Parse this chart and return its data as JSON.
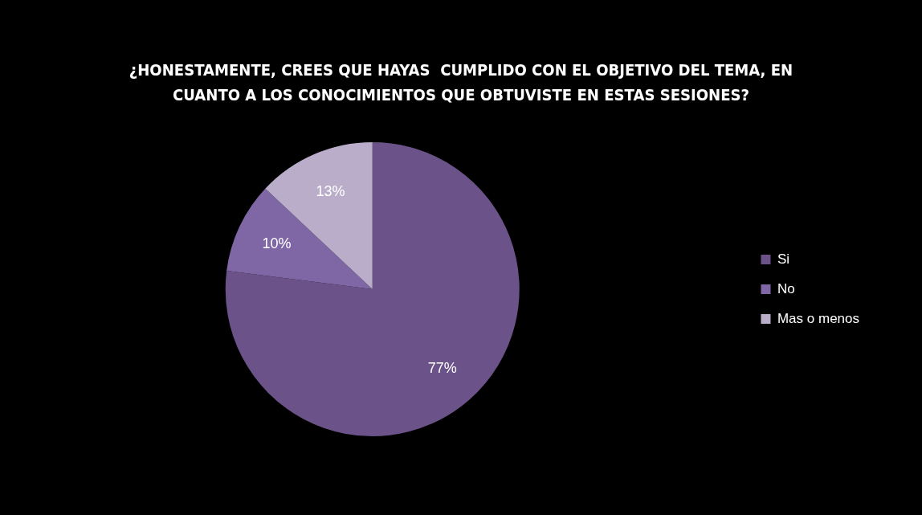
{
  "chart_data": {
    "type": "pie",
    "title": "¿HONESTAMENTE, CREES QUE HAYAS  CUMPLIDO CON EL OBJETIVO DEL TEMA, EN CUANTO A LOS CONOCIMIENTOS QUE OBTUVISTE EN ESTAS SESIONES?",
    "categories": [
      "Si",
      "No",
      "Mas o menos"
    ],
    "values": [
      77,
      10,
      13
    ],
    "colors": [
      "#6b5288",
      "#7f67a6",
      "#b9adc9"
    ],
    "value_labels": [
      "77%",
      "10%",
      "13%"
    ],
    "legend": "right"
  }
}
